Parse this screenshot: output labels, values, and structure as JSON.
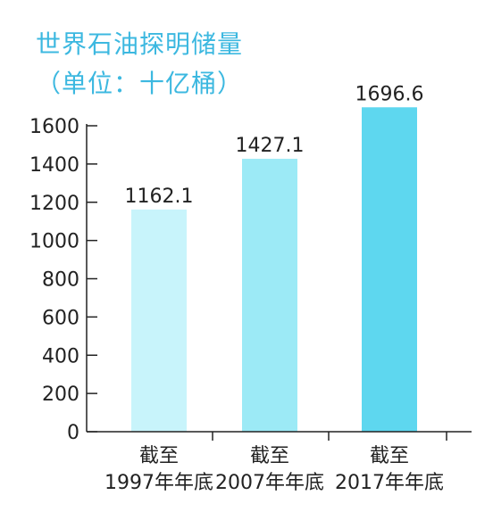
{
  "chart_data": {
    "type": "bar",
    "title": "世界石油探明储量",
    "subtitle": "（单位：十亿桶）",
    "categories": [
      [
        "截至",
        "1997年年底"
      ],
      [
        "截至",
        "2007年年底"
      ],
      [
        "截至",
        "2017年年底"
      ]
    ],
    "values": [
      1162.1,
      1427.1,
      1696.6
    ],
    "value_labels": [
      "1162.1",
      "1427.1",
      "1696.6"
    ],
    "ylim": [
      0,
      1600
    ],
    "yticks": [
      0,
      200,
      400,
      600,
      800,
      1000,
      1200,
      1400,
      1600
    ],
    "bar_colors": [
      "#c8f4fb",
      "#9ceaf6",
      "#5ed7ef"
    ],
    "axis_color": "#222222",
    "title_color": "#3cb8e0",
    "grid": false,
    "legend": "none"
  }
}
